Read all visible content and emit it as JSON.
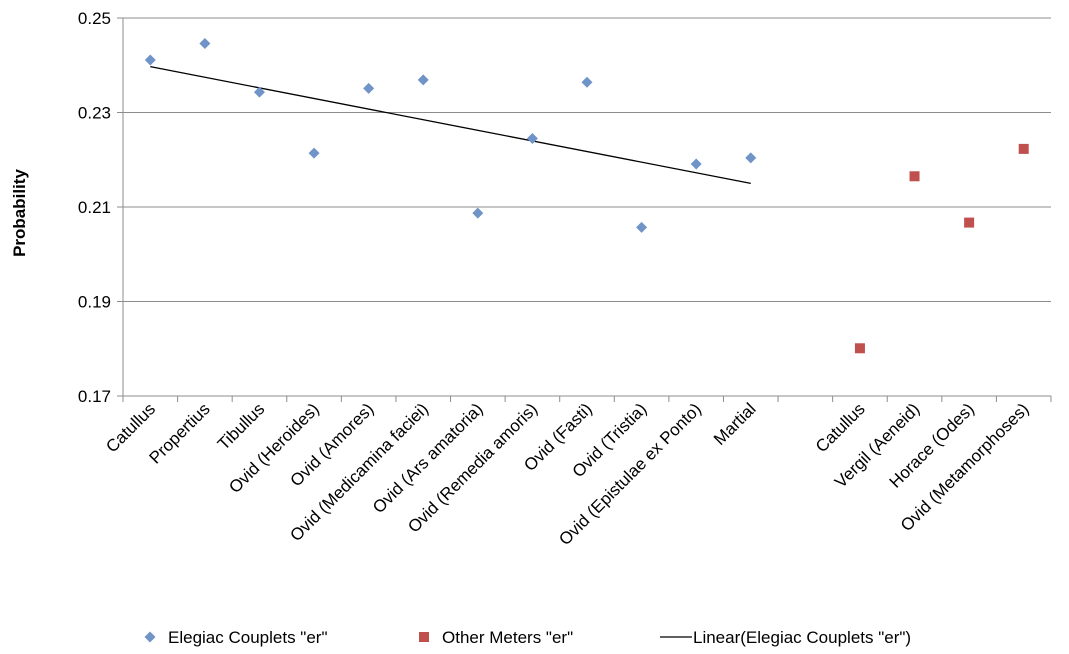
{
  "chart_data": {
    "type": "scatter",
    "title": "",
    "xlabel": "",
    "ylabel": "Probability",
    "ylim": [
      0.17,
      0.25
    ],
    "yticks": [
      "0.17",
      "0.19",
      "0.21",
      "0.23",
      "0.25"
    ],
    "grid": "horizontal",
    "legend_position": "bottom",
    "categories": [
      "Catullus",
      "Propertius",
      "Tibullus",
      "Ovid (Heroides)",
      "Ovid (Amores)",
      "Ovid (Medicamina faciei)",
      "Ovid (Ars amatoria)",
      "Ovid (Remedia amoris)",
      "Ovid (Fasti)",
      "Ovid (Tristia)",
      "Ovid (Epistulae ex Ponto)",
      "Martial",
      "",
      "Catullus",
      "Vergil (Aeneid)",
      "Horace (Odes)",
      "Ovid (Metamorphoses)"
    ],
    "series": [
      {
        "name": "Elegiac Couplets \"er\"",
        "marker": "diamond",
        "color": "#7094C8",
        "values": [
          0.2411,
          0.2446,
          0.2343,
          0.2214,
          0.2351,
          0.2369,
          0.2087,
          0.2245,
          0.2364,
          0.2057,
          0.2191,
          0.2204,
          null,
          null,
          null,
          null,
          null
        ]
      },
      {
        "name": "Other Meters \"er\"",
        "marker": "square",
        "color": "#C0504D",
        "values": [
          null,
          null,
          null,
          null,
          null,
          null,
          null,
          null,
          null,
          null,
          null,
          null,
          null,
          0.1801,
          0.2165,
          0.2067,
          0.2223
        ]
      }
    ],
    "trendline": {
      "name": "Linear(Elegiac Couplets \"er\")",
      "type": "linear",
      "color": "#000000",
      "from_index": 0,
      "to_index": 11,
      "start_value": 0.2397,
      "end_value": 0.215
    }
  }
}
